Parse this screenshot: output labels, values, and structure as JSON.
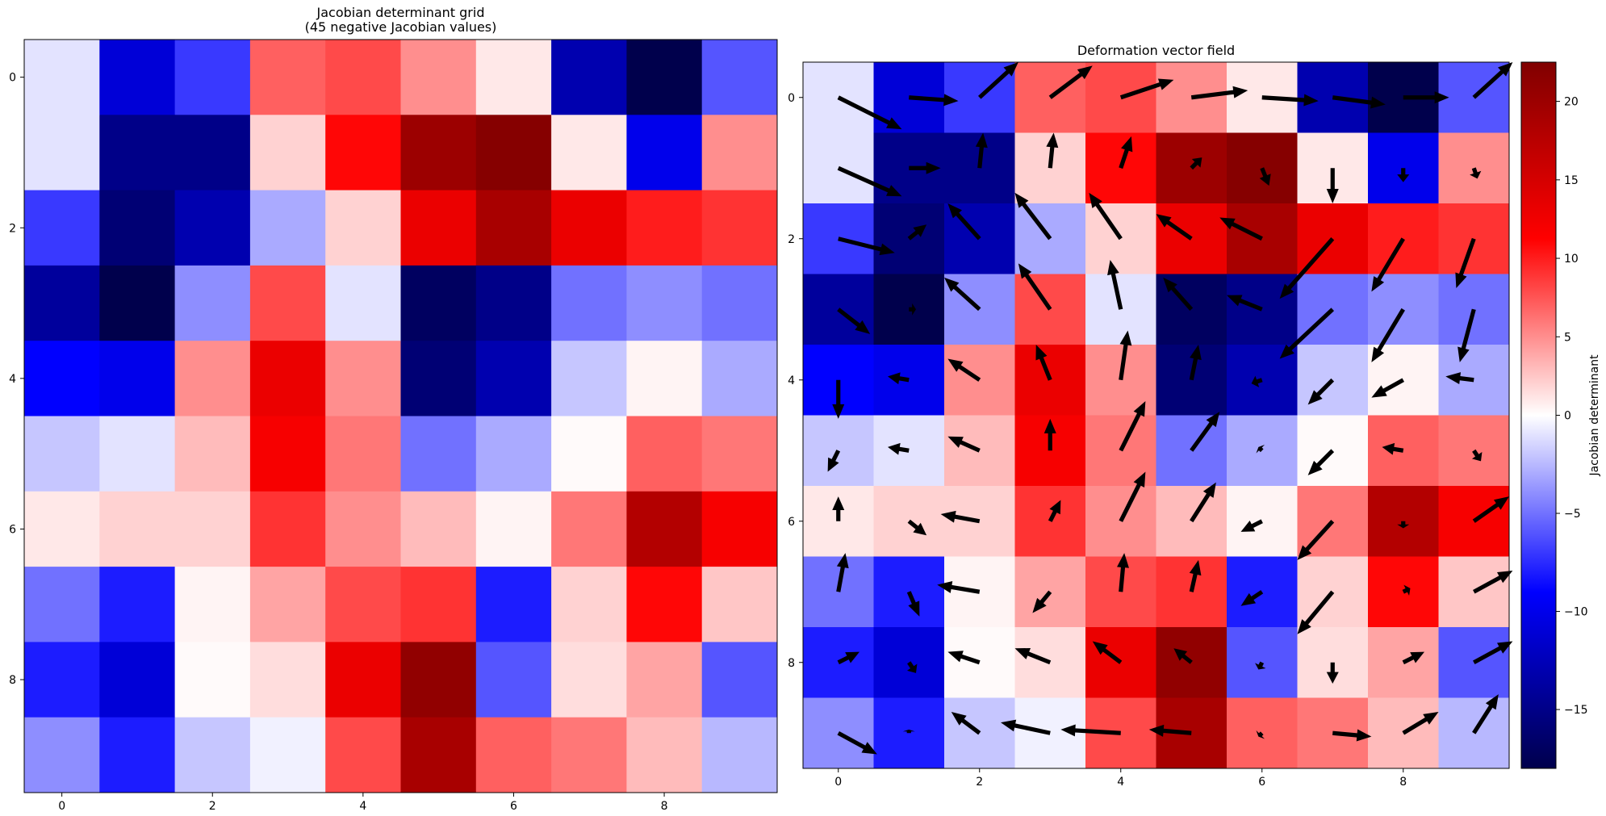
{
  "chart_data": [
    {
      "type": "heatmap",
      "title": "Jacobian determinant grid\n(45 negative Jacobian values)",
      "xlabel": "",
      "ylabel": "",
      "x_ticks": [
        0,
        2,
        4,
        6,
        8
      ],
      "y_ticks": [
        0,
        2,
        4,
        6,
        8
      ],
      "colormap": "seismic",
      "vlim": [
        -18,
        22.5
      ],
      "values": [
        [
          -1,
          -11,
          -7,
          7,
          8,
          5,
          1,
          -13,
          -18,
          -6
        ],
        [
          -1,
          -15,
          -15,
          2,
          11,
          20,
          22,
          1,
          -10,
          5
        ],
        [
          -7,
          -16,
          -13,
          -3,
          2,
          13,
          19,
          13,
          10,
          9
        ],
        [
          -14,
          -18,
          -4,
          8,
          -1,
          -17,
          -15,
          -5,
          -4,
          -5
        ],
        [
          -9,
          -10,
          5,
          13,
          5,
          -16,
          -13,
          -2,
          0.5,
          -3
        ],
        [
          -2,
          -1,
          3,
          12,
          6,
          -5,
          -3,
          0.2,
          7,
          6
        ],
        [
          1,
          2,
          2,
          9,
          5,
          3,
          0.5,
          6,
          18,
          12
        ],
        [
          -5,
          -8,
          0.5,
          4,
          8,
          9,
          -8,
          2,
          11,
          2.5
        ],
        [
          -8,
          -11,
          0.2,
          1.5,
          13,
          21,
          -6,
          1.5,
          4,
          -6
        ],
        [
          -4,
          -8,
          -2,
          -0.5,
          8,
          19,
          7,
          6,
          3,
          -2.5
        ]
      ]
    },
    {
      "type": "quiver",
      "title": "Deformation vector field",
      "xlabel": "",
      "ylabel": "",
      "x_ticks": [
        0,
        2,
        4,
        6,
        8
      ],
      "y_ticks": [
        0,
        2,
        4,
        6,
        8
      ],
      "colorbar": {
        "label": "Jacobian determinant",
        "ticks": [
          -15,
          -10,
          -5,
          0,
          5,
          10,
          15,
          20
        ],
        "range": [
          -18,
          22.5
        ]
      },
      "vectors_note_units": "u,v in cell units (x right, y down)",
      "u": [
        [
          0.9,
          0.7,
          0.55,
          0.6,
          0.75,
          0.8,
          0.8,
          0.75,
          0.65,
          0.55
        ],
        [
          0.9,
          0.45,
          0.05,
          0.05,
          0.15,
          0.15,
          0.1,
          0.0,
          0.0,
          0.05
        ],
        [
          0.8,
          0.25,
          -0.45,
          -0.5,
          -0.45,
          -0.5,
          -0.6,
          -0.75,
          -0.45,
          -0.25
        ],
        [
          0.45,
          0.1,
          -0.5,
          -0.45,
          -0.15,
          -0.4,
          -0.5,
          -0.75,
          -0.45,
          -0.2
        ],
        [
          0.0,
          -0.3,
          -0.45,
          -0.2,
          0.1,
          0.1,
          -0.15,
          -0.35,
          -0.45,
          -0.4
        ],
        [
          -0.15,
          -0.3,
          -0.45,
          0.0,
          0.35,
          0.4,
          -0.05,
          -0.35,
          -0.3,
          0.1
        ],
        [
          0.0,
          0.25,
          -0.55,
          0.15,
          0.35,
          0.35,
          -0.3,
          -0.5,
          0.0,
          0.5
        ],
        [
          0.1,
          0.15,
          -0.6,
          -0.25,
          0.05,
          0.1,
          -0.3,
          -0.5,
          0.1,
          0.55
        ],
        [
          0.3,
          0.1,
          -0.45,
          -0.5,
          -0.4,
          -0.25,
          -0.05,
          0.0,
          0.3,
          0.55
        ],
        [
          0.55,
          0.0,
          -0.4,
          -0.7,
          -0.85,
          -0.6,
          -0.05,
          0.55,
          0.5,
          0.35
        ]
      ],
      "v": [
        [
          0.45,
          0.05,
          -0.5,
          -0.45,
          -0.25,
          -0.1,
          0.05,
          0.1,
          0.0,
          -0.5
        ],
        [
          0.4,
          0.0,
          -0.5,
          -0.5,
          -0.45,
          -0.15,
          0.25,
          0.5,
          0.2,
          0.15
        ],
        [
          0.2,
          -0.2,
          -0.5,
          -0.65,
          -0.65,
          -0.35,
          -0.3,
          0.85,
          0.75,
          0.7
        ],
        [
          0.35,
          0.0,
          -0.45,
          -0.65,
          -0.7,
          -0.45,
          -0.2,
          0.7,
          0.75,
          0.75
        ],
        [
          0.55,
          -0.05,
          -0.3,
          -0.5,
          -0.7,
          -0.5,
          0.05,
          0.35,
          0.25,
          -0.05
        ],
        [
          0.3,
          -0.05,
          -0.2,
          -0.45,
          -0.7,
          -0.55,
          -0.05,
          0.35,
          -0.05,
          0.15
        ],
        [
          -0.35,
          0.2,
          -0.1,
          -0.3,
          -0.7,
          -0.55,
          0.15,
          0.55,
          0.1,
          -0.35
        ],
        [
          -0.55,
          0.35,
          -0.1,
          0.3,
          -0.55,
          -0.45,
          0.2,
          0.6,
          -0.05,
          -0.3
        ],
        [
          -0.15,
          0.15,
          -0.15,
          -0.2,
          -0.3,
          -0.2,
          0.1,
          0.3,
          -0.15,
          -0.3
        ],
        [
          0.3,
          -0.05,
          -0.3,
          -0.15,
          -0.05,
          -0.05,
          0.05,
          0.05,
          -0.3,
          -0.55
        ]
      ]
    }
  ]
}
